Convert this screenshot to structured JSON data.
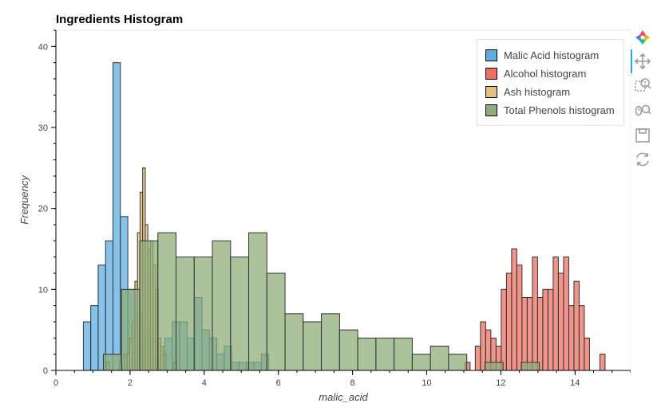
{
  "chart_data": {
    "type": "bar",
    "title": "Ingredients Histogram",
    "xlabel": "malic_acid",
    "ylabel": "Frequency",
    "xlim": [
      0,
      15.5
    ],
    "ylim": [
      0,
      42
    ],
    "x_ticks": [
      0,
      2,
      4,
      6,
      8,
      10,
      12,
      14
    ],
    "y_ticks": [
      0,
      10,
      20,
      30,
      40
    ],
    "legend_position": "top-right",
    "series": [
      {
        "name": "Malic Acid histogram",
        "color": "#5DADE2",
        "bins": [
          {
            "left": 0.74,
            "right": 0.94,
            "count": 6
          },
          {
            "left": 0.94,
            "right": 1.14,
            "count": 8
          },
          {
            "left": 1.14,
            "right": 1.34,
            "count": 13
          },
          {
            "left": 1.34,
            "right": 1.54,
            "count": 16
          },
          {
            "left": 1.54,
            "right": 1.74,
            "count": 38
          },
          {
            "left": 1.74,
            "right": 1.94,
            "count": 19
          },
          {
            "left": 1.94,
            "right": 2.14,
            "count": 10
          },
          {
            "left": 2.14,
            "right": 2.34,
            "count": 7
          },
          {
            "left": 2.34,
            "right": 2.54,
            "count": 5
          },
          {
            "left": 2.54,
            "right": 2.74,
            "count": 4
          },
          {
            "left": 2.74,
            "right": 2.94,
            "count": 2
          },
          {
            "left": 2.94,
            "right": 3.14,
            "count": 4
          },
          {
            "left": 3.14,
            "right": 3.34,
            "count": 6
          },
          {
            "left": 3.34,
            "right": 3.54,
            "count": 6
          },
          {
            "left": 3.54,
            "right": 3.74,
            "count": 4
          },
          {
            "left": 3.74,
            "right": 3.94,
            "count": 9
          },
          {
            "left": 3.94,
            "right": 4.14,
            "count": 5
          },
          {
            "left": 4.14,
            "right": 4.34,
            "count": 4
          },
          {
            "left": 4.34,
            "right": 4.54,
            "count": 2
          },
          {
            "left": 4.54,
            "right": 4.74,
            "count": 3
          },
          {
            "left": 4.74,
            "right": 4.94,
            "count": 1
          },
          {
            "left": 4.94,
            "right": 5.14,
            "count": 1
          },
          {
            "left": 5.14,
            "right": 5.34,
            "count": 1
          },
          {
            "left": 5.34,
            "right": 5.54,
            "count": 1
          },
          {
            "left": 5.54,
            "right": 5.74,
            "count": 2
          }
        ]
      },
      {
        "name": "Alcohol histogram",
        "color": "#EC7063",
        "bins": [
          {
            "left": 11.03,
            "right": 11.17,
            "count": 1
          },
          {
            "left": 11.31,
            "right": 11.45,
            "count": 3
          },
          {
            "left": 11.45,
            "right": 11.59,
            "count": 6
          },
          {
            "left": 11.59,
            "right": 11.73,
            "count": 5
          },
          {
            "left": 11.73,
            "right": 11.87,
            "count": 4
          },
          {
            "left": 11.87,
            "right": 12.01,
            "count": 3
          },
          {
            "left": 12.01,
            "right": 12.15,
            "count": 10
          },
          {
            "left": 12.15,
            "right": 12.29,
            "count": 12
          },
          {
            "left": 12.29,
            "right": 12.43,
            "count": 15
          },
          {
            "left": 12.43,
            "right": 12.57,
            "count": 13
          },
          {
            "left": 12.57,
            "right": 12.71,
            "count": 9
          },
          {
            "left": 12.71,
            "right": 12.85,
            "count": 9
          },
          {
            "left": 12.85,
            "right": 12.99,
            "count": 14
          },
          {
            "left": 12.99,
            "right": 13.13,
            "count": 9
          },
          {
            "left": 13.13,
            "right": 13.27,
            "count": 10
          },
          {
            "left": 13.27,
            "right": 13.41,
            "count": 10
          },
          {
            "left": 13.41,
            "right": 13.55,
            "count": 14
          },
          {
            "left": 13.55,
            "right": 13.69,
            "count": 12
          },
          {
            "left": 13.69,
            "right": 13.83,
            "count": 14
          },
          {
            "left": 13.83,
            "right": 13.97,
            "count": 8
          },
          {
            "left": 13.97,
            "right": 14.11,
            "count": 11
          },
          {
            "left": 14.11,
            "right": 14.25,
            "count": 8
          },
          {
            "left": 14.25,
            "right": 14.39,
            "count": 4
          },
          {
            "left": 14.67,
            "right": 14.81,
            "count": 2
          }
        ]
      },
      {
        "name": "Ash histogram",
        "color": "#E5C07B",
        "bins": [
          {
            "left": 1.36,
            "right": 1.43,
            "count": 1
          },
          {
            "left": 1.71,
            "right": 1.78,
            "count": 1
          },
          {
            "left": 1.85,
            "right": 1.92,
            "count": 2
          },
          {
            "left": 1.92,
            "right": 1.99,
            "count": 2
          },
          {
            "left": 1.99,
            "right": 2.06,
            "count": 4
          },
          {
            "left": 2.06,
            "right": 2.13,
            "count": 6
          },
          {
            "left": 2.13,
            "right": 2.2,
            "count": 11
          },
          {
            "left": 2.2,
            "right": 2.27,
            "count": 17
          },
          {
            "left": 2.27,
            "right": 2.34,
            "count": 22
          },
          {
            "left": 2.34,
            "right": 2.41,
            "count": 25
          },
          {
            "left": 2.41,
            "right": 2.48,
            "count": 18
          },
          {
            "left": 2.48,
            "right": 2.55,
            "count": 15
          },
          {
            "left": 2.55,
            "right": 2.62,
            "count": 16
          },
          {
            "left": 2.62,
            "right": 2.69,
            "count": 13
          },
          {
            "left": 2.69,
            "right": 2.76,
            "count": 10
          },
          {
            "left": 2.76,
            "right": 2.83,
            "count": 4
          },
          {
            "left": 2.83,
            "right": 2.9,
            "count": 3
          },
          {
            "left": 2.9,
            "right": 2.97,
            "count": 2
          },
          {
            "left": 3.18,
            "right": 3.25,
            "count": 1
          }
        ]
      },
      {
        "name": "Total Phenols histogram",
        "color": "#8FAE7A",
        "bins": [
          {
            "left": 1.28,
            "right": 1.77,
            "count": 2
          },
          {
            "left": 1.77,
            "right": 2.26,
            "count": 10
          },
          {
            "left": 2.26,
            "right": 2.75,
            "count": 16
          },
          {
            "left": 2.75,
            "right": 3.24,
            "count": 17
          },
          {
            "left": 3.24,
            "right": 3.73,
            "count": 14
          },
          {
            "left": 3.73,
            "right": 4.22,
            "count": 14
          },
          {
            "left": 4.22,
            "right": 4.71,
            "count": 16
          },
          {
            "left": 4.71,
            "right": 5.2,
            "count": 14
          },
          {
            "left": 5.2,
            "right": 5.69,
            "count": 17
          },
          {
            "left": 5.69,
            "right": 6.18,
            "count": 12
          },
          {
            "left": 6.18,
            "right": 6.67,
            "count": 7
          },
          {
            "left": 6.67,
            "right": 7.16,
            "count": 6
          },
          {
            "left": 7.16,
            "right": 7.65,
            "count": 7
          },
          {
            "left": 7.65,
            "right": 8.14,
            "count": 5
          },
          {
            "left": 8.14,
            "right": 8.63,
            "count": 4
          },
          {
            "left": 8.63,
            "right": 9.12,
            "count": 4
          },
          {
            "left": 9.12,
            "right": 9.61,
            "count": 4
          },
          {
            "left": 9.61,
            "right": 10.1,
            "count": 2
          },
          {
            "left": 10.1,
            "right": 10.59,
            "count": 3
          },
          {
            "left": 10.59,
            "right": 11.08,
            "count": 2
          },
          {
            "left": 11.57,
            "right": 12.06,
            "count": 1
          },
          {
            "left": 12.55,
            "right": 13.04,
            "count": 1
          }
        ]
      }
    ]
  },
  "toolbar": {
    "logo": "bokeh-logo-icon",
    "tools": [
      "pan-icon",
      "box-zoom-icon",
      "wheel-zoom-icon",
      "save-icon",
      "reset-icon"
    ]
  }
}
